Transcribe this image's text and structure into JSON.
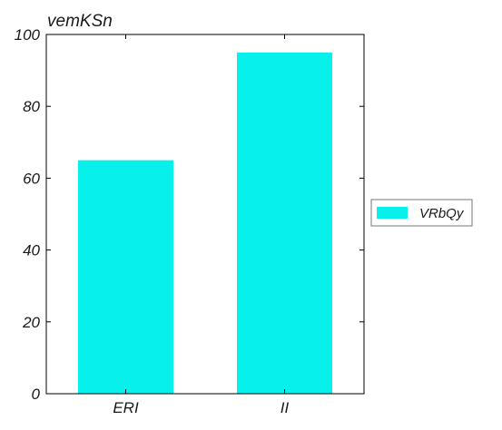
{
  "chart_data": {
    "type": "bar",
    "title": "vemKSn",
    "xlabel": "",
    "ylabel": "",
    "categories": [
      "ERI",
      "II"
    ],
    "series": [
      {
        "name": "VRbQy",
        "values": [
          65,
          95
        ],
        "color": "#08f0ec"
      }
    ],
    "ylim": [
      0,
      100
    ],
    "yticks": [
      0,
      20,
      40,
      60,
      80,
      100
    ],
    "grid": false,
    "legend_position": "right"
  }
}
